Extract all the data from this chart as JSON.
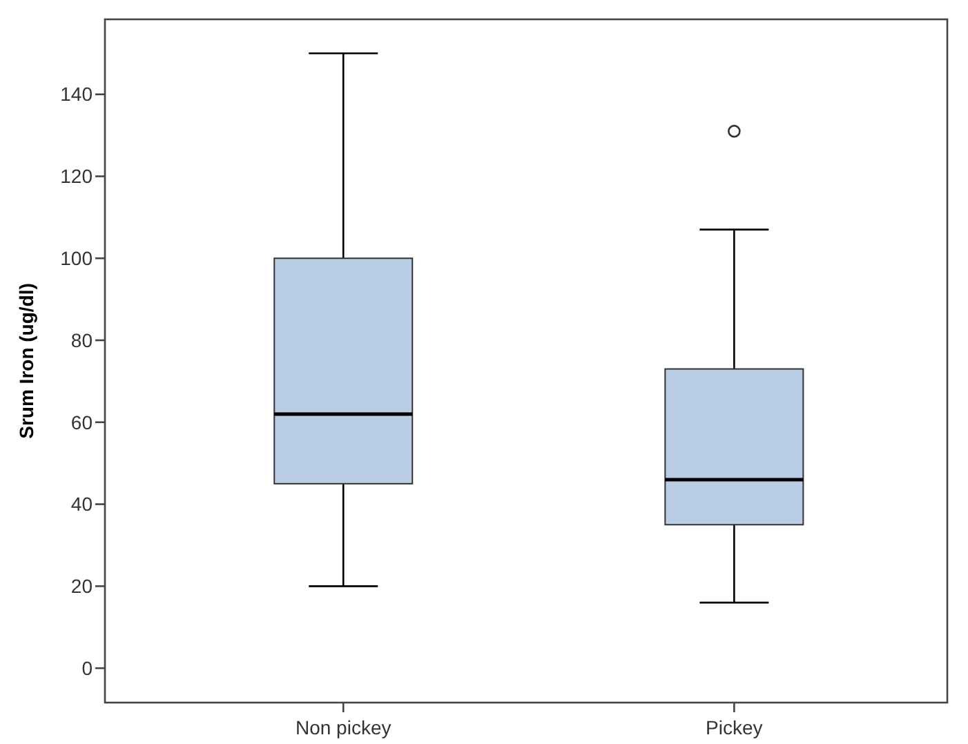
{
  "chart_data": {
    "type": "box",
    "ylabel": "Srum Iron (ug/dl)",
    "categories": [
      "Non pickey",
      "Pickey"
    ],
    "color": "#b8cce4",
    "boxes": [
      {
        "low": 20,
        "q1": 45,
        "median": 62,
        "q3": 100,
        "high": 150
      },
      {
        "low": 16,
        "q1": 35,
        "median": 46,
        "q3": 73,
        "high": 107,
        "outliers": [
          131
        ]
      }
    ],
    "ylim": [
      -8.4,
      158.3
    ],
    "yticks": [
      0,
      20,
      40,
      60,
      80,
      100,
      120,
      140
    ],
    "grid": false
  }
}
